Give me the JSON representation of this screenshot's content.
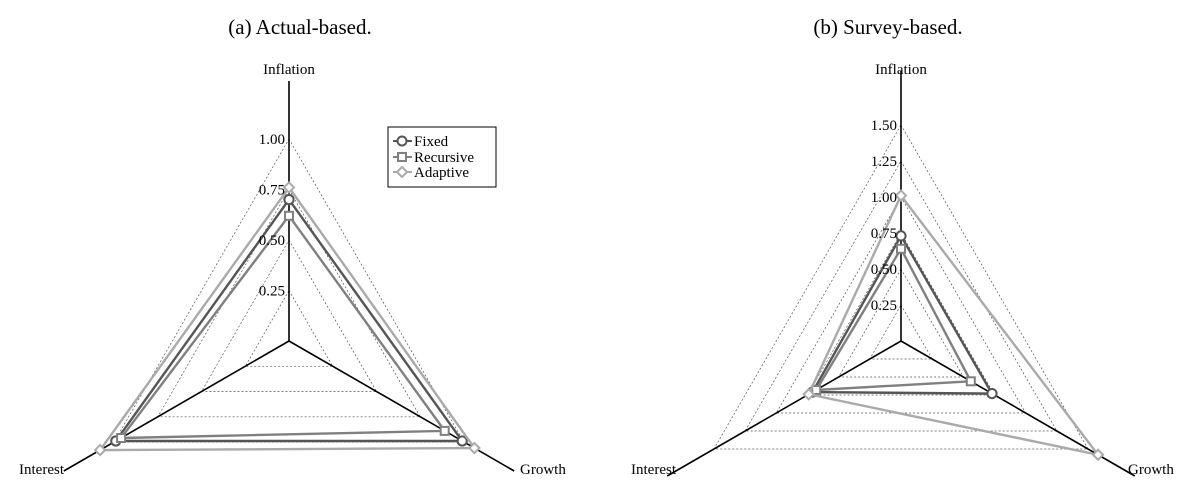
{
  "chart_data": [
    {
      "type": "radar",
      "title": "(a) Actual-based.",
      "axes": [
        "Inflation",
        "Growth",
        "Interest"
      ],
      "ticks": [
        0.25,
        0.5,
        0.75,
        1.0
      ],
      "tick_labels": [
        "0.25",
        "0.50",
        "0.75",
        "1.00"
      ],
      "rmax": 1.0,
      "grid": true,
      "legend": "top-right",
      "series": [
        {
          "name": "Fixed",
          "marker": "circle",
          "color": "#555555",
          "values": [
            0.7,
            0.99,
            0.99
          ]
        },
        {
          "name": "Recursive",
          "marker": "square",
          "color": "#808080",
          "values": [
            0.62,
            0.89,
            0.96
          ]
        },
        {
          "name": "Adaptive",
          "marker": "diamond",
          "color": "#aaaaaa",
          "values": [
            0.76,
            1.06,
            1.08
          ]
        }
      ]
    },
    {
      "type": "radar",
      "title": "(b) Survey-based.",
      "axes": [
        "Inflation",
        "Growth",
        "Interest"
      ],
      "ticks": [
        0.25,
        0.5,
        0.75,
        1.0,
        1.25,
        1.5
      ],
      "tick_labels": [
        "0.25",
        "0.50",
        "0.75",
        "1.00",
        "1.25",
        "1.50"
      ],
      "rmax": 1.5,
      "grid": true,
      "legend": "none",
      "series": [
        {
          "name": "Fixed",
          "marker": "circle",
          "color": "#555555",
          "values": [
            0.73,
            0.73,
            0.71
          ]
        },
        {
          "name": "Recursive",
          "marker": "square",
          "color": "#808080",
          "values": [
            0.64,
            0.56,
            0.68
          ]
        },
        {
          "name": "Adaptive",
          "marker": "diamond",
          "color": "#aaaaaa",
          "values": [
            1.01,
            1.58,
            0.74
          ]
        }
      ]
    }
  ]
}
